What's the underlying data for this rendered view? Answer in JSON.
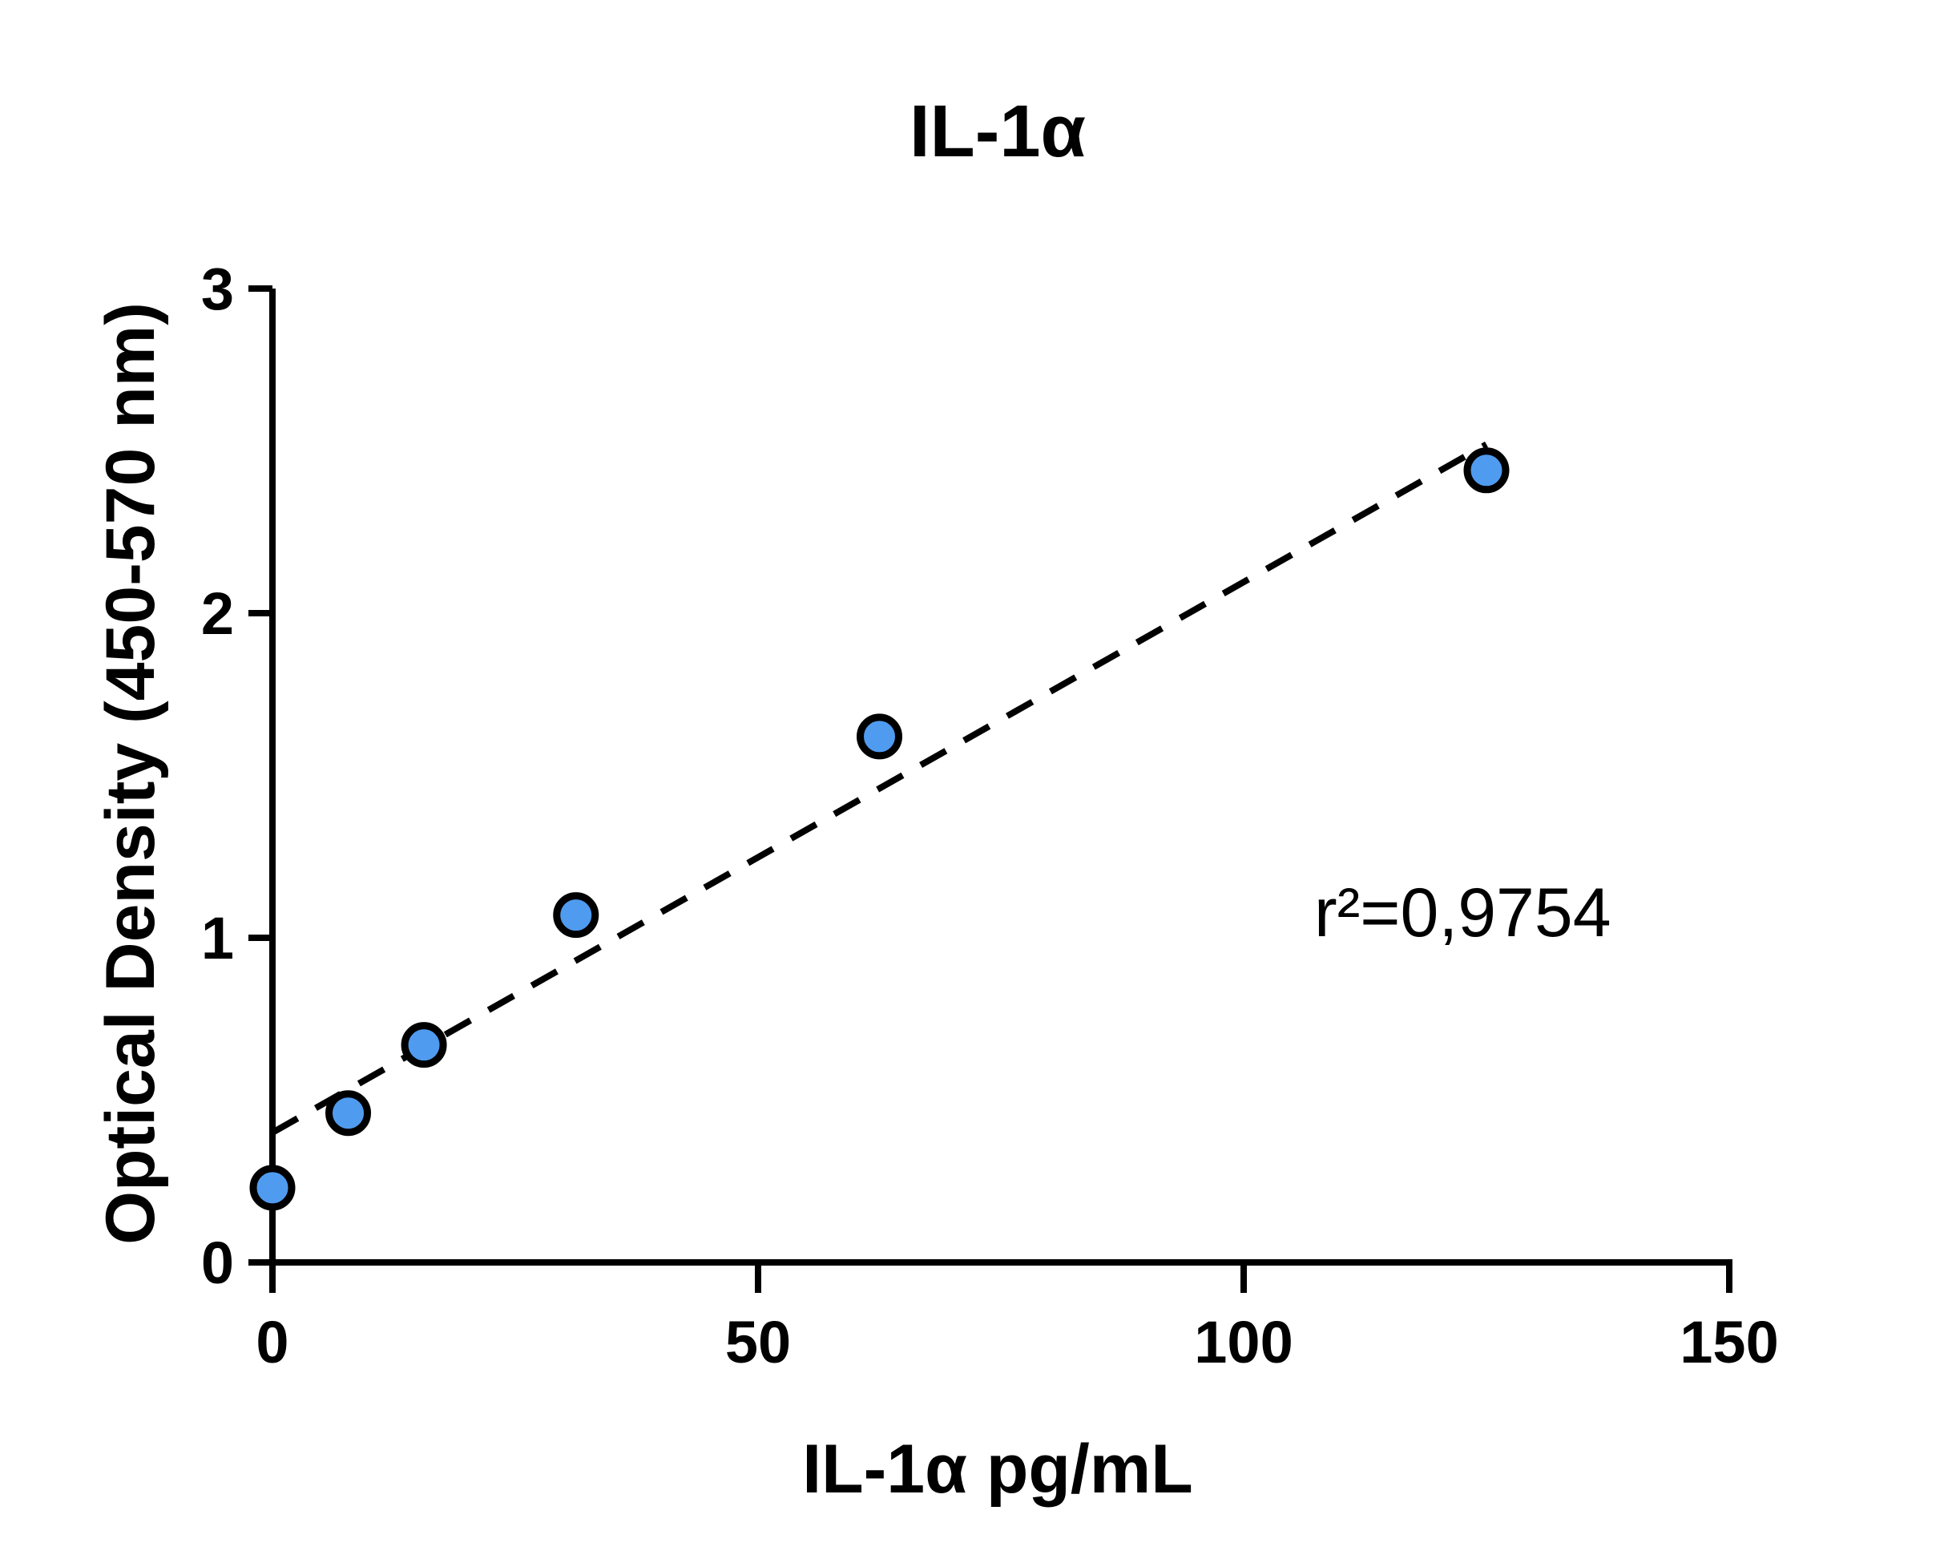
{
  "chart_data": {
    "type": "scatter",
    "title": "IL-1α",
    "xlabel": "IL-1α pg/mL",
    "ylabel": "Optical Density (450-570 nm)",
    "xlim": [
      0,
      150
    ],
    "ylim": [
      0,
      3
    ],
    "xticks": [
      0,
      50,
      100,
      150
    ],
    "yticks": [
      0,
      1,
      2,
      3
    ],
    "xtick_labels": [
      "0",
      "50",
      "100",
      "150"
    ],
    "ytick_labels": [
      "0",
      "1",
      "2",
      "3"
    ],
    "grid": false,
    "series": [
      {
        "marker": "circle",
        "color": "#4f9bf0",
        "edge_color": "#000000",
        "x": [
          0,
          7.8,
          15.6,
          31.25,
          62.5,
          125
        ],
        "y": [
          0.23,
          0.46,
          0.67,
          1.07,
          1.62,
          2.44
        ]
      }
    ],
    "fit_line": {
      "style": "dashed",
      "color": "#000000",
      "x": [
        0,
        125
      ],
      "y": [
        0.4,
        2.52
      ]
    },
    "annotation": "r²=0,9754"
  }
}
